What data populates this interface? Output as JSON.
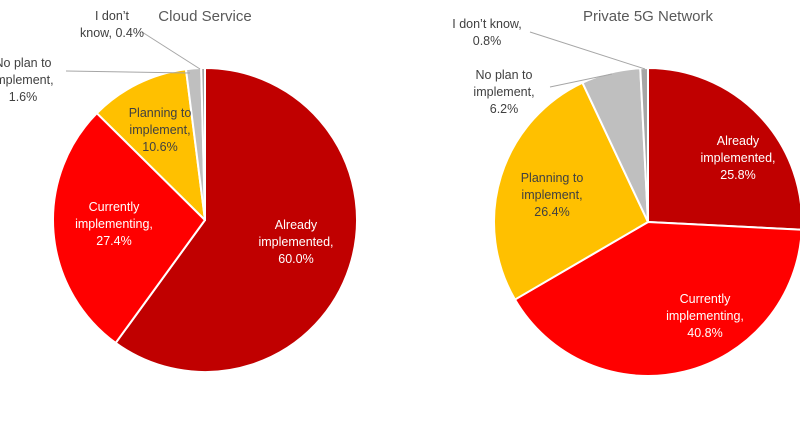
{
  "chart_data": [
    {
      "type": "pie",
      "title": "Cloud Service",
      "slices": [
        {
          "name": "Already implemented",
          "label_lines": [
            "Already",
            "implemented,",
            "60.0%"
          ],
          "value": 60.0,
          "color": "#C00000"
        },
        {
          "name": "Currently implementing",
          "label_lines": [
            "Currently",
            "implementing,",
            "27.4%"
          ],
          "value": 27.4,
          "color": "#FF0000"
        },
        {
          "name": "Planning to implement",
          "label_lines": [
            "Planning to",
            "implement,",
            "10.6%"
          ],
          "value": 10.6,
          "color": "#FFC000"
        },
        {
          "name": "No plan to implement",
          "label_lines": [
            "No plan to",
            "implement,",
            "1.6%"
          ],
          "value": 1.6,
          "color": "#BFBFBF"
        },
        {
          "name": "I don't know",
          "label_lines": [
            "I don’t",
            "know, 0.4%"
          ],
          "value": 0.4,
          "color": "#A6A6A6"
        }
      ]
    },
    {
      "type": "pie",
      "title": "Private 5G Network",
      "slices": [
        {
          "name": "Already implemented",
          "label_lines": [
            "Already",
            "implemented,",
            "25.8%"
          ],
          "value": 25.8,
          "color": "#C00000"
        },
        {
          "name": "Currently implementing",
          "label_lines": [
            "Currently",
            "implementing,",
            "40.8%"
          ],
          "value": 40.8,
          "color": "#FF0000"
        },
        {
          "name": "Planning to implement",
          "label_lines": [
            "Planning to",
            "implement,",
            "26.4%"
          ],
          "value": 26.4,
          "color": "#FFC000"
        },
        {
          "name": "No plan to implement",
          "label_lines": [
            "No plan to",
            "implement,",
            "6.2%"
          ],
          "value": 6.2,
          "color": "#BFBFBF"
        },
        {
          "name": "I don't know",
          "label_lines": [
            "I don’t know,",
            "0.8%"
          ],
          "value": 0.8,
          "color": "#A6A6A6"
        }
      ]
    }
  ]
}
